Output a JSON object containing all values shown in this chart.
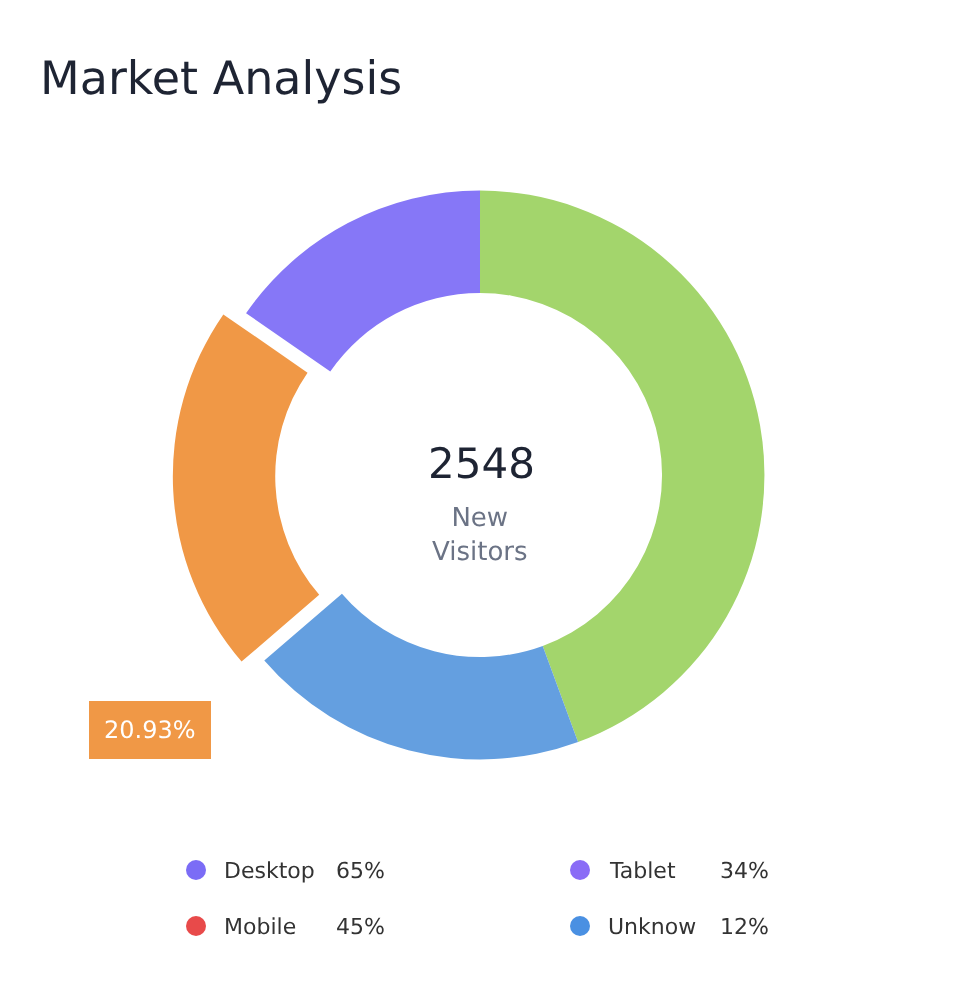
{
  "chart_data": [
    {
      "type": "donut",
      "title": "Market Analysis",
      "categories": [
        null,
        null,
        null,
        null
      ],
      "values": [
        44.4,
        19.3,
        20.93,
        15.37
      ],
      "colors": [
        "#a3d56c",
        "#649fe0",
        "#f09846",
        "#8677f7"
      ],
      "value_labels": [
        null,
        null,
        "20.93%",
        null
      ],
      "annotations": [
        "2548",
        "New Visitors"
      ]
    },
    {
      "type": "other",
      "categories": [
        "Desktop",
        "Tablet",
        "Mobile",
        "Unknow"
      ],
      "value_labels": [
        "65%",
        "34%",
        "45%",
        "12%"
      ],
      "colors": [
        "#7b6cf6",
        "#8a6cf6",
        "#e84a4a",
        "#4a90e2"
      ]
    }
  ]
}
